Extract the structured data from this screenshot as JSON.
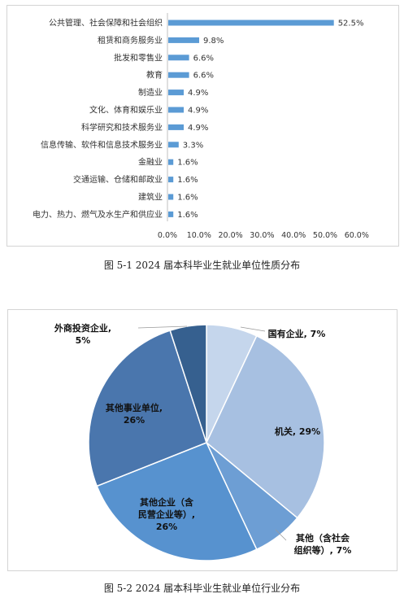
{
  "charts": [
    {
      "chart_data": {
        "type": "bar",
        "orientation": "horizontal",
        "categories": [
          "公共管理、社会保障和社会组织",
          "租赁和商务服务业",
          "批发和零售业",
          "教育",
          "制造业",
          "文化、体育和娱乐业",
          "科学研究和技术服务业",
          "信息传输、软件和信息技术服务业",
          "金融业",
          "交通运输、仓储和邮政业",
          "建筑业",
          "电力、热力、燃气及水生产和供应业"
        ],
        "values": [
          52.5,
          9.8,
          6.6,
          6.6,
          4.9,
          4.9,
          4.9,
          3.3,
          1.6,
          1.6,
          1.6,
          1.6
        ],
        "data_labels": [
          "52.5%",
          "9.8%",
          "6.6%",
          "6.6%",
          "4.9%",
          "4.9%",
          "4.9%",
          "3.3%",
          "1.6%",
          "1.6%",
          "1.6%",
          "1.6%"
        ],
        "x_ticks": [
          "0.0%",
          "10.0%",
          "20.0%",
          "30.0%",
          "40.0%",
          "50.0%",
          "60.0%"
        ],
        "xlim": [
          0,
          60
        ],
        "color": "#5b9bd5",
        "grid": false
      },
      "caption": "图 5-1   2024 届本科毕业生就业单位性质分布"
    },
    {
      "chart_data": {
        "type": "pie",
        "slices": [
          {
            "label": "国有企业, 7%",
            "lines": [
              "国有企业, 7%"
            ],
            "value": 7,
            "color": "#c5d6ec"
          },
          {
            "label": "机关, 29%",
            "lines": [
              "机关, 29%"
            ],
            "value": 29,
            "color": "#a7c0e1"
          },
          {
            "label": "其他（含社会组织等）, 7%",
            "lines": [
              "其他（含社会",
              "组织等）, 7%"
            ],
            "value": 7,
            "color": "#6d9ed4"
          },
          {
            "label": "其他企业（含民营企业等）, 26%",
            "lines": [
              "其他企业（含",
              "民营企业等）,",
              "26%"
            ],
            "value": 26,
            "color": "#5792cf"
          },
          {
            "label": "其他事业单位, 26%",
            "lines": [
              "其他事业单位,",
              "26%"
            ],
            "value": 26,
            "color": "#4a76ad"
          },
          {
            "label": "外商投资企业, 5%",
            "lines": [
              "外商投资企业,",
              "5%"
            ],
            "value": 5,
            "color": "#36608f"
          }
        ],
        "start_angle_deg": 0,
        "direction": "clockwise"
      },
      "caption": "图 5-2   2024 届本科毕业生就业单位行业分布"
    }
  ]
}
